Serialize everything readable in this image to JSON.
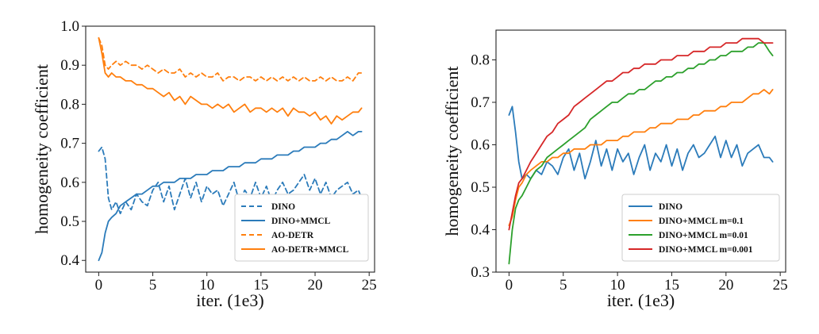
{
  "colors": {
    "blue": "#2b7bba",
    "orange": "#ff7f0e",
    "green": "#2ca02c",
    "red": "#d62728"
  },
  "chart_data": [
    {
      "type": "line",
      "xlabel": "iter. (1e3)",
      "ylabel": "homogeneity coefficient",
      "xlim": [
        -1.2,
        25.5
      ],
      "ylim": [
        0.37,
        1.0
      ],
      "xticks": [
        0,
        5,
        10,
        15,
        20,
        25
      ],
      "yticks": [
        0.4,
        0.5,
        0.6,
        0.7,
        0.8,
        0.9,
        1.0
      ],
      "ytick_labels": [
        "0.4",
        "0.5",
        "0.6",
        "0.7",
        "0.8",
        "0.9",
        "1.0"
      ],
      "grid": false,
      "legend_position": "lower-right",
      "series": [
        {
          "name": "DINO",
          "color": "#2b7bba",
          "style": "dashed",
          "x": [
            0,
            0.3,
            0.6,
            0.9,
            1.2,
            1.6,
            2,
            2.5,
            3,
            3.5,
            4,
            4.5,
            5,
            5.5,
            6,
            6.5,
            7,
            7.5,
            8,
            8.5,
            9,
            9.5,
            10,
            10.5,
            11,
            11.5,
            12,
            12.5,
            13,
            13.5,
            14,
            14.5,
            15,
            15.5,
            16,
            16.5,
            17,
            17.5,
            18,
            18.5,
            19,
            19.5,
            20,
            20.5,
            21,
            21.5,
            22,
            22.5,
            23,
            23.5,
            24,
            24.3
          ],
          "y": [
            0.68,
            0.69,
            0.66,
            0.56,
            0.53,
            0.55,
            0.52,
            0.55,
            0.53,
            0.57,
            0.55,
            0.54,
            0.58,
            0.6,
            0.55,
            0.59,
            0.53,
            0.57,
            0.61,
            0.56,
            0.6,
            0.55,
            0.59,
            0.57,
            0.58,
            0.54,
            0.57,
            0.6,
            0.55,
            0.58,
            0.56,
            0.6,
            0.56,
            0.59,
            0.55,
            0.58,
            0.6,
            0.57,
            0.58,
            0.6,
            0.62,
            0.58,
            0.61,
            0.57,
            0.6,
            0.56,
            0.58,
            0.59,
            0.6,
            0.57,
            0.58,
            0.56
          ]
        },
        {
          "name": "DINO+MMCL",
          "color": "#2b7bba",
          "style": "solid",
          "x": [
            0,
            0.3,
            0.6,
            0.9,
            1.2,
            1.6,
            2,
            2.5,
            3,
            3.5,
            4,
            4.5,
            5,
            5.5,
            6,
            6.5,
            7,
            7.5,
            8,
            8.5,
            9,
            9.5,
            10,
            10.5,
            11,
            11.5,
            12,
            12.5,
            13,
            13.5,
            14,
            14.5,
            15,
            15.5,
            16,
            16.5,
            17,
            17.5,
            18,
            18.5,
            19,
            19.5,
            20,
            20.5,
            21,
            21.5,
            22,
            22.5,
            23,
            23.5,
            24,
            24.3
          ],
          "y": [
            0.4,
            0.42,
            0.47,
            0.5,
            0.51,
            0.52,
            0.54,
            0.55,
            0.56,
            0.57,
            0.57,
            0.58,
            0.59,
            0.59,
            0.6,
            0.6,
            0.6,
            0.61,
            0.61,
            0.61,
            0.62,
            0.62,
            0.62,
            0.63,
            0.63,
            0.63,
            0.64,
            0.64,
            0.64,
            0.65,
            0.65,
            0.65,
            0.66,
            0.66,
            0.66,
            0.67,
            0.67,
            0.67,
            0.68,
            0.68,
            0.69,
            0.69,
            0.69,
            0.7,
            0.7,
            0.71,
            0.71,
            0.72,
            0.73,
            0.72,
            0.73,
            0.73
          ]
        },
        {
          "name": "AO-DETR",
          "color": "#ff7f0e",
          "style": "dashed",
          "x": [
            0,
            0.3,
            0.6,
            0.9,
            1.2,
            1.6,
            2,
            2.5,
            3,
            3.5,
            4,
            4.5,
            5,
            5.5,
            6,
            6.5,
            7,
            7.5,
            8,
            8.5,
            9,
            9.5,
            10,
            10.5,
            11,
            11.5,
            12,
            12.5,
            13,
            13.5,
            14,
            14.5,
            15,
            15.5,
            16,
            16.5,
            17,
            17.5,
            18,
            18.5,
            19,
            19.5,
            20,
            20.5,
            21,
            21.5,
            22,
            22.5,
            23,
            23.5,
            24,
            24.3
          ],
          "y": [
            0.97,
            0.95,
            0.9,
            0.89,
            0.9,
            0.91,
            0.9,
            0.91,
            0.9,
            0.9,
            0.89,
            0.9,
            0.89,
            0.88,
            0.89,
            0.88,
            0.88,
            0.89,
            0.87,
            0.88,
            0.87,
            0.88,
            0.87,
            0.87,
            0.88,
            0.86,
            0.87,
            0.87,
            0.86,
            0.87,
            0.87,
            0.86,
            0.87,
            0.86,
            0.87,
            0.86,
            0.87,
            0.86,
            0.87,
            0.86,
            0.87,
            0.86,
            0.86,
            0.87,
            0.86,
            0.87,
            0.86,
            0.86,
            0.87,
            0.86,
            0.88,
            0.88
          ]
        },
        {
          "name": "AO-DETR+MMCL",
          "color": "#ff7f0e",
          "style": "solid",
          "x": [
            0,
            0.3,
            0.6,
            0.9,
            1.2,
            1.6,
            2,
            2.5,
            3,
            3.5,
            4,
            4.5,
            5,
            5.5,
            6,
            6.5,
            7,
            7.5,
            8,
            8.5,
            9,
            9.5,
            10,
            10.5,
            11,
            11.5,
            12,
            12.5,
            13,
            13.5,
            14,
            14.5,
            15,
            15.5,
            16,
            16.5,
            17,
            17.5,
            18,
            18.5,
            19,
            19.5,
            20,
            20.5,
            21,
            21.5,
            22,
            22.5,
            23,
            23.5,
            24,
            24.3
          ],
          "y": [
            0.97,
            0.93,
            0.88,
            0.87,
            0.88,
            0.87,
            0.87,
            0.86,
            0.86,
            0.85,
            0.85,
            0.84,
            0.84,
            0.83,
            0.82,
            0.83,
            0.81,
            0.82,
            0.8,
            0.82,
            0.81,
            0.8,
            0.8,
            0.79,
            0.8,
            0.79,
            0.8,
            0.78,
            0.79,
            0.8,
            0.78,
            0.79,
            0.79,
            0.78,
            0.79,
            0.78,
            0.79,
            0.77,
            0.79,
            0.78,
            0.78,
            0.77,
            0.78,
            0.76,
            0.77,
            0.75,
            0.77,
            0.76,
            0.77,
            0.78,
            0.78,
            0.79
          ]
        }
      ]
    },
    {
      "type": "line",
      "xlabel": "iter. (1e3)",
      "ylabel": "homogeneity coefficient",
      "xlim": [
        -1.2,
        25.5
      ],
      "ylim": [
        0.3,
        0.87
      ],
      "xticks": [
        0,
        5,
        10,
        15,
        20,
        25
      ],
      "yticks": [
        0.3,
        0.4,
        0.5,
        0.6,
        0.7,
        0.8
      ],
      "ytick_labels": [
        "0.3",
        "0.4",
        "0.5",
        "0.6",
        "0.7",
        "0.8"
      ],
      "grid": false,
      "legend_position": "lower-right",
      "series": [
        {
          "name": "DINO",
          "color": "#2b7bba",
          "style": "solid",
          "x": [
            0,
            0.3,
            0.6,
            0.9,
            1.2,
            1.6,
            2,
            2.5,
            3,
            3.5,
            4,
            4.5,
            5,
            5.5,
            6,
            6.5,
            7,
            7.5,
            8,
            8.5,
            9,
            9.5,
            10,
            10.5,
            11,
            11.5,
            12,
            12.5,
            13,
            13.5,
            14,
            14.5,
            15,
            15.5,
            16,
            16.5,
            17,
            17.5,
            18,
            18.5,
            19,
            19.5,
            20,
            20.5,
            21,
            21.5,
            22,
            22.5,
            23,
            23.5,
            24,
            24.3
          ],
          "y": [
            0.67,
            0.69,
            0.63,
            0.56,
            0.52,
            0.53,
            0.52,
            0.54,
            0.53,
            0.56,
            0.55,
            0.53,
            0.57,
            0.59,
            0.54,
            0.58,
            0.52,
            0.56,
            0.61,
            0.55,
            0.59,
            0.54,
            0.59,
            0.56,
            0.58,
            0.53,
            0.57,
            0.6,
            0.54,
            0.58,
            0.56,
            0.6,
            0.55,
            0.59,
            0.54,
            0.58,
            0.6,
            0.57,
            0.58,
            0.6,
            0.62,
            0.57,
            0.61,
            0.57,
            0.6,
            0.55,
            0.58,
            0.59,
            0.6,
            0.57,
            0.57,
            0.56
          ]
        },
        {
          "name": "DINO+MMCL m=0.1",
          "color": "#ff7f0e",
          "style": "solid",
          "x": [
            0,
            0.3,
            0.6,
            0.9,
            1.2,
            1.6,
            2,
            2.5,
            3,
            3.5,
            4,
            4.5,
            5,
            5.5,
            6,
            6.5,
            7,
            7.5,
            8,
            8.5,
            9,
            9.5,
            10,
            10.5,
            11,
            11.5,
            12,
            12.5,
            13,
            13.5,
            14,
            14.5,
            15,
            15.5,
            16,
            16.5,
            17,
            17.5,
            18,
            18.5,
            19,
            19.5,
            20,
            20.5,
            21,
            21.5,
            22,
            22.5,
            23,
            23.5,
            24,
            24.3
          ],
          "y": [
            0.41,
            0.43,
            0.47,
            0.5,
            0.51,
            0.53,
            0.54,
            0.55,
            0.56,
            0.56,
            0.57,
            0.57,
            0.58,
            0.58,
            0.59,
            0.59,
            0.59,
            0.6,
            0.6,
            0.6,
            0.61,
            0.61,
            0.61,
            0.62,
            0.62,
            0.63,
            0.63,
            0.63,
            0.64,
            0.64,
            0.65,
            0.65,
            0.65,
            0.66,
            0.66,
            0.66,
            0.67,
            0.67,
            0.68,
            0.68,
            0.68,
            0.69,
            0.69,
            0.7,
            0.7,
            0.7,
            0.71,
            0.72,
            0.72,
            0.73,
            0.72,
            0.73
          ]
        },
        {
          "name": "DINO+MMCL m=0.01",
          "color": "#2ca02c",
          "style": "solid",
          "x": [
            0,
            0.3,
            0.6,
            0.9,
            1.2,
            1.6,
            2,
            2.5,
            3,
            3.5,
            4,
            4.5,
            5,
            5.5,
            6,
            6.5,
            7,
            7.5,
            8,
            8.5,
            9,
            9.5,
            10,
            10.5,
            11,
            11.5,
            12,
            12.5,
            13,
            13.5,
            14,
            14.5,
            15,
            15.5,
            16,
            16.5,
            17,
            17.5,
            18,
            18.5,
            19,
            19.5,
            20,
            20.5,
            21,
            21.5,
            22,
            22.5,
            23,
            23.5,
            24,
            24.3
          ],
          "y": [
            0.32,
            0.4,
            0.45,
            0.47,
            0.48,
            0.5,
            0.52,
            0.54,
            0.55,
            0.57,
            0.58,
            0.59,
            0.6,
            0.61,
            0.62,
            0.63,
            0.64,
            0.66,
            0.67,
            0.68,
            0.69,
            0.7,
            0.7,
            0.71,
            0.72,
            0.72,
            0.73,
            0.73,
            0.74,
            0.75,
            0.75,
            0.76,
            0.76,
            0.77,
            0.77,
            0.78,
            0.78,
            0.79,
            0.79,
            0.8,
            0.8,
            0.81,
            0.81,
            0.82,
            0.82,
            0.82,
            0.83,
            0.83,
            0.84,
            0.84,
            0.82,
            0.81
          ]
        },
        {
          "name": "DINO+MMCL m=0.001",
          "color": "#d62728",
          "style": "solid",
          "x": [
            0,
            0.3,
            0.6,
            0.9,
            1.2,
            1.6,
            2,
            2.5,
            3,
            3.5,
            4,
            4.5,
            5,
            5.5,
            6,
            6.5,
            7,
            7.5,
            8,
            8.5,
            9,
            9.5,
            10,
            10.5,
            11,
            11.5,
            12,
            12.5,
            13,
            13.5,
            14,
            14.5,
            15,
            15.5,
            16,
            16.5,
            17,
            17.5,
            18,
            18.5,
            19,
            19.5,
            20,
            20.5,
            21,
            21.5,
            22,
            22.5,
            23,
            23.5,
            24,
            24.3
          ],
          "y": [
            0.4,
            0.44,
            0.48,
            0.51,
            0.52,
            0.54,
            0.56,
            0.58,
            0.6,
            0.62,
            0.63,
            0.65,
            0.66,
            0.67,
            0.69,
            0.7,
            0.71,
            0.72,
            0.73,
            0.74,
            0.75,
            0.75,
            0.76,
            0.77,
            0.77,
            0.78,
            0.78,
            0.79,
            0.79,
            0.79,
            0.8,
            0.8,
            0.8,
            0.81,
            0.81,
            0.81,
            0.82,
            0.82,
            0.82,
            0.83,
            0.83,
            0.83,
            0.84,
            0.84,
            0.84,
            0.85,
            0.85,
            0.85,
            0.85,
            0.84,
            0.84,
            0.84
          ]
        }
      ]
    }
  ]
}
